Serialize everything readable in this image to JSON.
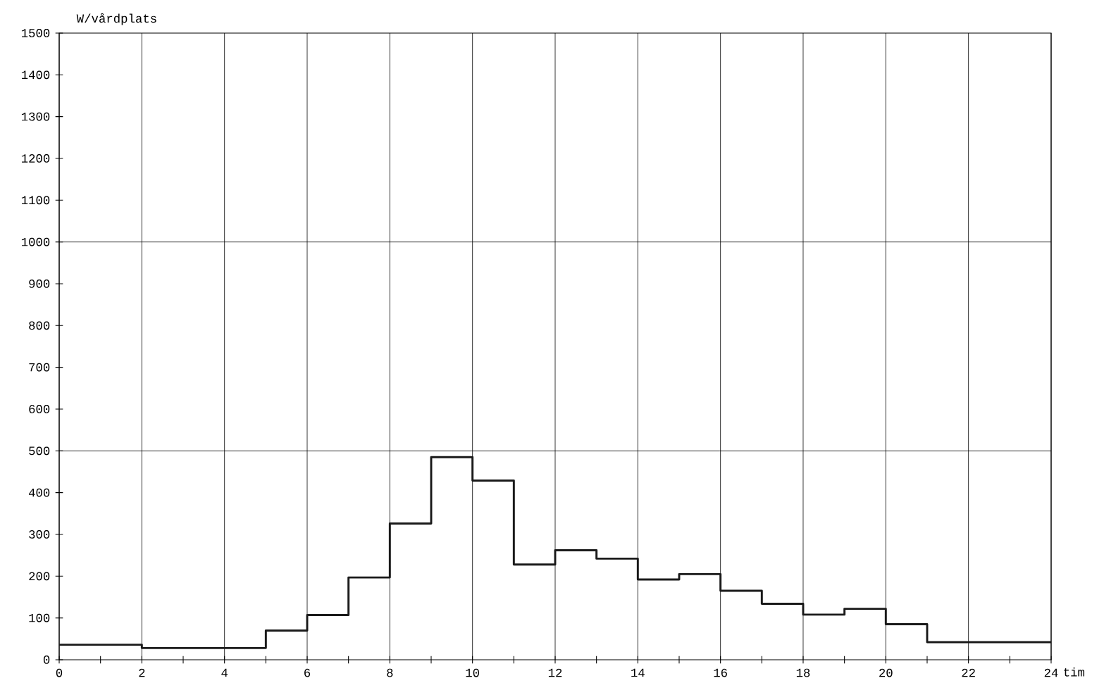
{
  "chart_data": {
    "type": "step",
    "xlabel": "tim",
    "ylabel": "W/vårdplats",
    "x": [
      0,
      2,
      5,
      6,
      7,
      8,
      9,
      10,
      11,
      12,
      13,
      14,
      15,
      16,
      17,
      18,
      19,
      20,
      21,
      24
    ],
    "values": [
      36,
      28,
      70,
      107,
      197,
      326,
      485,
      429,
      228,
      262,
      242,
      192,
      205,
      165,
      134,
      108,
      122,
      85,
      42,
      42
    ],
    "color": "#1a1a1a",
    "xlim": [
      0,
      24
    ],
    "ylim": [
      0,
      1500
    ],
    "xticks": [
      0,
      {
        "value": 1,
        "label": null
      },
      2,
      {
        "value": 3,
        "label": null
      },
      4,
      {
        "value": 5,
        "label": null
      },
      6,
      {
        "value": 7,
        "label": null
      },
      8,
      {
        "value": 9,
        "label": null
      },
      10,
      {
        "value": 11,
        "label": null
      },
      12,
      {
        "value": 13,
        "label": null
      },
      14,
      {
        "value": 15,
        "label": null
      },
      16,
      {
        "value": 17,
        "label": null
      },
      18,
      {
        "value": 19,
        "label": null
      },
      20,
      {
        "value": 21,
        "label": null
      },
      22,
      {
        "value": 23,
        "label": null
      },
      24
    ],
    "yticks": [
      0,
      100,
      200,
      300,
      400,
      500,
      600,
      700,
      800,
      900,
      1000,
      1100,
      1200,
      1300,
      1400,
      1500
    ],
    "grid": "x",
    "ref_lines": [
      {
        "axis": "y",
        "value": 500
      },
      {
        "axis": "y",
        "value": 1000
      }
    ],
    "line_style": "solid",
    "marker": "none"
  }
}
